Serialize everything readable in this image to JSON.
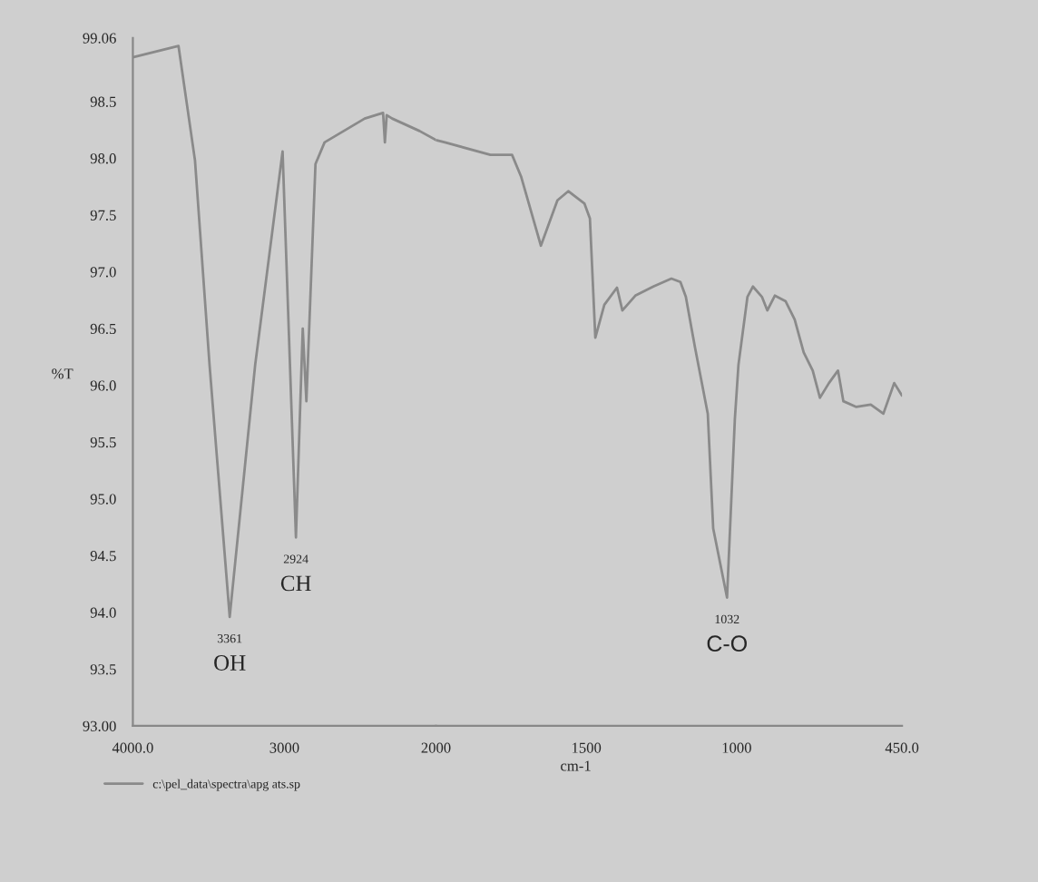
{
  "chart_data": [
    {
      "type": "line",
      "ylabel": "%T",
      "legend": "bottom",
      "grid": false,
      "x": [
        4000,
        3699,
        3590,
        3494,
        3361,
        3193,
        3012,
        2924,
        2879,
        2855,
        2795,
        2735,
        2470,
        2349,
        2337,
        2325,
        2289,
        2108,
        2000
      ],
      "series": [
        {
          "name": "c:\\pel_data\\spectra\\apg ats.sp",
          "color": "#8a8a8a",
          "values": [
            98.89,
            98.99,
            97.98,
            96.18,
            93.96,
            96.18,
            98.06,
            94.66,
            96.5,
            95.86,
            97.95,
            98.14,
            98.35,
            98.4,
            98.14,
            98.38,
            98.35,
            98.24,
            98.16
          ]
        }
      ],
      "xlim": [
        4000,
        2000
      ],
      "ylim": [
        93.0,
        99.06
      ],
      "xticks": [
        {
          "value": 4000,
          "label": "4000.0"
        },
        3000
      ],
      "yticks": [
        {
          "value": 93,
          "label": "93.00"
        },
        93.5,
        {
          "value": 94,
          "label": "94.0"
        },
        94.5,
        {
          "value": 95,
          "label": "95.0"
        },
        95.5,
        {
          "value": 96,
          "label": "96.0"
        },
        96.5,
        {
          "value": 97,
          "label": "97.0"
        },
        97.5,
        {
          "value": 98,
          "label": "98.0"
        },
        98.5,
        99.06
      ],
      "annotations": [
        {
          "text": "3361",
          "x": 3361,
          "y": 93.96
        },
        {
          "text": "OH",
          "x": 3361,
          "y": 93.96
        },
        {
          "text": "2924",
          "x": 2924,
          "y": 94.66
        },
        {
          "text": "CH",
          "x": 2924,
          "y": 94.66
        }
      ]
    },
    {
      "type": "line",
      "xlabel": "cm-1",
      "tick_labels": "x",
      "grid": false,
      "x": [
        2000,
        1970,
        1819,
        1747,
        1717,
        1651,
        1596,
        1560,
        1506,
        1488,
        1470,
        1440,
        1398,
        1380,
        1337,
        1277,
        1217,
        1187,
        1169,
        1139,
        1096,
        1078,
        1032,
        1006,
        994,
        964,
        946,
        916,
        898,
        873,
        837,
        807,
        777,
        747,
        723,
        693,
        663,
        645,
        602,
        554,
        512,
        476,
        450
      ],
      "series": [
        {
          "color": "#8a8a8a",
          "values": [
            98.16,
            98.14,
            98.03,
            98.03,
            97.84,
            97.23,
            97.63,
            97.71,
            97.6,
            97.47,
            96.42,
            96.71,
            96.86,
            96.66,
            96.79,
            96.87,
            96.94,
            96.91,
            96.78,
            96.34,
            95.75,
            94.74,
            94.13,
            95.7,
            96.18,
            96.78,
            96.87,
            96.78,
            96.66,
            96.79,
            96.74,
            96.58,
            96.29,
            96.13,
            95.89,
            96.02,
            96.13,
            95.86,
            95.81,
            95.83,
            95.75,
            96.02,
            95.91
          ]
        }
      ],
      "xlim": [
        2000,
        450
      ],
      "ylim": [
        93.0,
        99.06
      ],
      "xticks": [
        2000,
        1500,
        1000,
        {
          "value": 450,
          "label": "450.0"
        }
      ],
      "annotations": [
        {
          "text": "1032",
          "x": 1032,
          "y": 94.13
        },
        {
          "text": "C-O",
          "x": 1032,
          "y": 94.13
        }
      ]
    }
  ]
}
